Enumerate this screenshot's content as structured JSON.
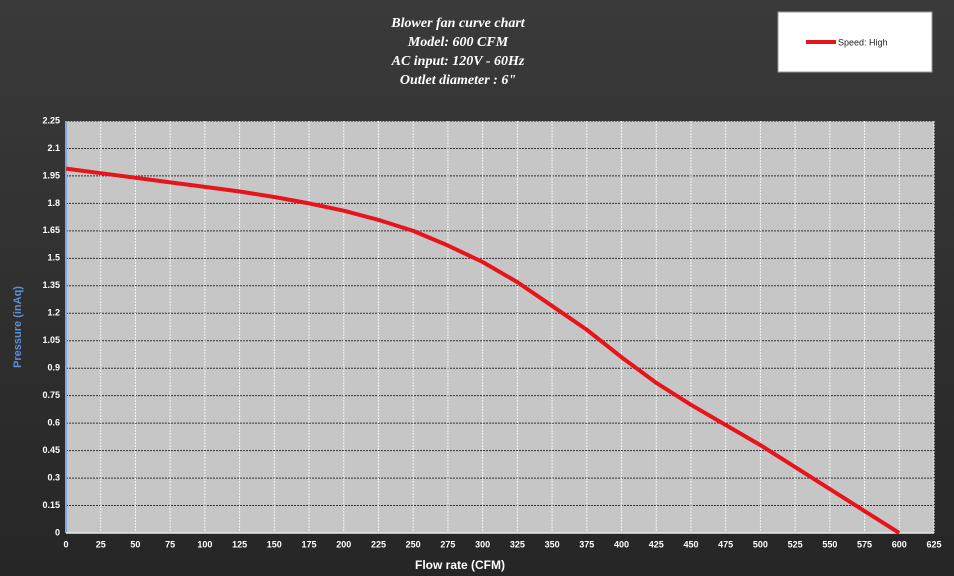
{
  "chart_data": {
    "type": "line",
    "title": [
      "Blower fan curve chart",
      "Model: 600 CFM",
      "AC input: 120V - 60Hz",
      "Outlet diameter : 6\""
    ],
    "x_label": "Flow rate (CFM)",
    "y_label": "Pressure (inAq)",
    "x": [
      0,
      25,
      50,
      75,
      100,
      125,
      150,
      175,
      200,
      225,
      250,
      275,
      300,
      325,
      350,
      375,
      400,
      425,
      450,
      475,
      500,
      525,
      550,
      575,
      600
    ],
    "series": [
      {
        "name": "Speed: High",
        "color": "#e8141c",
        "values": [
          1.99,
          1.965,
          1.94,
          1.915,
          1.89,
          1.865,
          1.835,
          1.8,
          1.76,
          1.71,
          1.65,
          1.57,
          1.48,
          1.37,
          1.24,
          1.11,
          0.96,
          0.82,
          0.7,
          0.59,
          0.48,
          0.36,
          0.24,
          0.12,
          0
        ]
      }
    ],
    "xlim": [
      0,
      625
    ],
    "xticks": [
      0,
      25,
      50,
      75,
      100,
      125,
      150,
      175,
      200,
      225,
      250,
      275,
      300,
      325,
      350,
      375,
      400,
      425,
      450,
      475,
      500,
      525,
      550,
      575,
      600,
      625
    ],
    "ylim": [
      0,
      2.25
    ],
    "yticks": [
      0,
      0.15,
      0.3,
      0.45,
      0.6,
      0.75,
      0.9,
      1.05,
      1.2,
      1.35,
      1.5,
      1.65,
      1.8,
      1.95,
      2.1,
      2.25
    ],
    "grid": true,
    "legend": "top-right"
  }
}
